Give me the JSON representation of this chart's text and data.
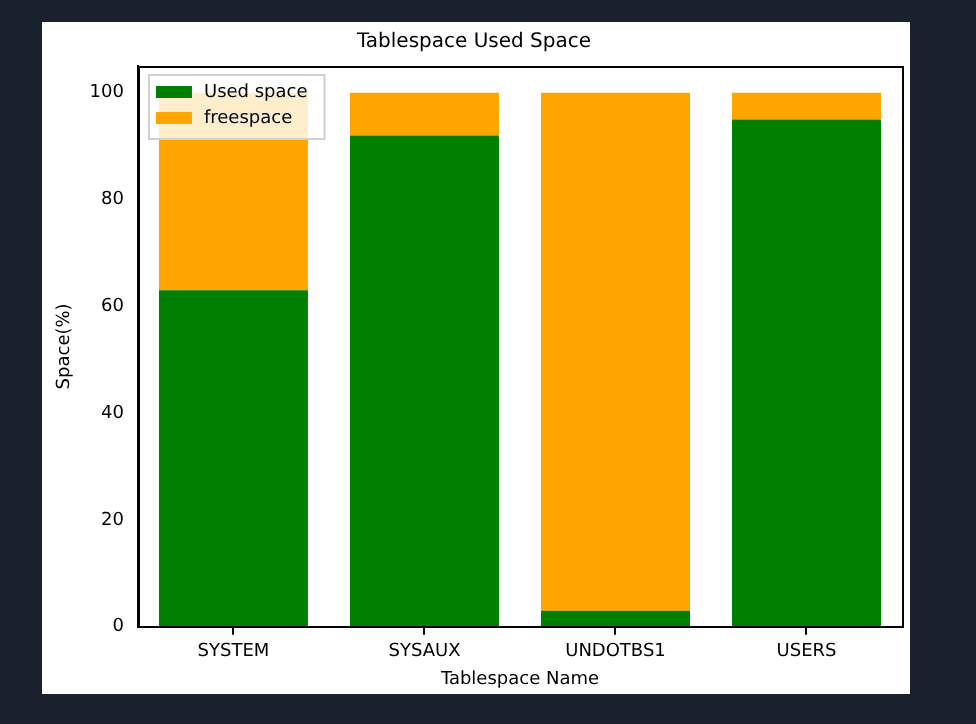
{
  "chart_data": {
    "type": "bar",
    "title": "Tablespace Used Space",
    "xlabel": "Tablespace Name",
    "ylabel": "Space(%)",
    "categories": [
      "SYSTEM",
      "SYSAUX",
      "UNDOTBS1",
      "USERS"
    ],
    "series": [
      {
        "name": "Used space",
        "color": "#008000",
        "values": [
          63,
          92,
          3,
          95
        ]
      },
      {
        "name": "freespace",
        "color": "#ffa500",
        "values": [
          37,
          8,
          97,
          5
        ]
      }
    ],
    "stacked": true,
    "ylim": [
      0,
      105
    ],
    "yticks": [
      0,
      20,
      40,
      60,
      80,
      100
    ],
    "grid": false,
    "legend": "top left"
  }
}
